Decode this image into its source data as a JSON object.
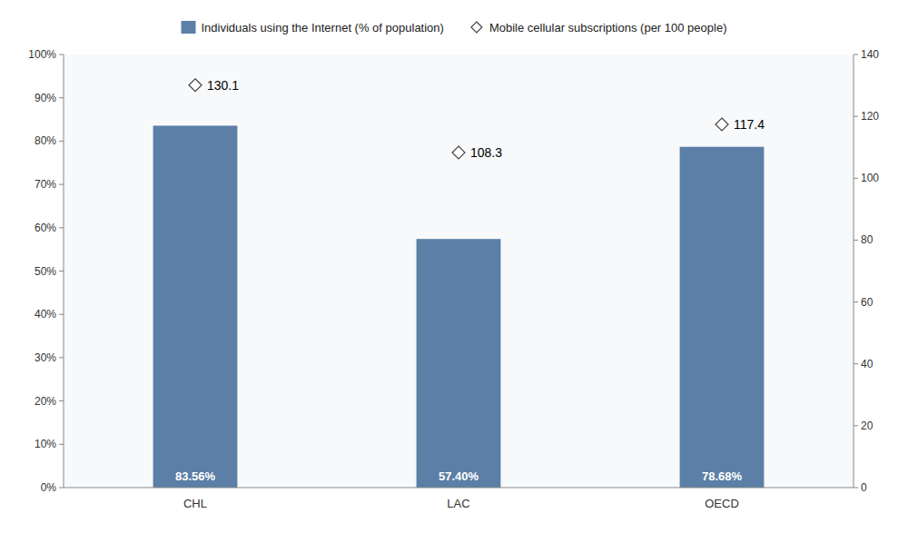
{
  "chart_data": {
    "type": "bar",
    "categories": [
      "CHL",
      "LAC",
      "OECD"
    ],
    "series": [
      {
        "name": "Individuals using the Internet (% of population)",
        "type": "bar",
        "color": "#5B7FA6",
        "values": [
          0.8356,
          0.574,
          0.7868
        ],
        "value_labels": [
          "83.56%",
          "57.40%",
          "78.68%"
        ]
      },
      {
        "name": "Mobile cellular subscriptions (per 100 people)",
        "type": "scatter",
        "marker": "diamond",
        "axis": "y2",
        "values": [
          130.1,
          108.3,
          117.4
        ]
      }
    ],
    "ylim": [
      0,
      1.0
    ],
    "yticks": [
      {
        "value": 0.0,
        "label": "0%"
      },
      {
        "value": 0.1,
        "label": "10%"
      },
      {
        "value": 0.2,
        "label": "20%"
      },
      {
        "value": 0.3,
        "label": "30%"
      },
      {
        "value": 0.4,
        "label": "40%"
      },
      {
        "value": 0.5,
        "label": "50%"
      },
      {
        "value": 0.6,
        "label": "60%"
      },
      {
        "value": 0.7,
        "label": "70%"
      },
      {
        "value": 0.8,
        "label": "80%"
      },
      {
        "value": 0.9,
        "label": "90%"
      },
      {
        "value": 1.0,
        "label": "100%"
      }
    ],
    "y2lim": [
      0,
      140
    ],
    "y2ticks": [
      0,
      20,
      40,
      60,
      80,
      100,
      120,
      140
    ],
    "data_labels": true,
    "grid": false,
    "legend": "top"
  }
}
